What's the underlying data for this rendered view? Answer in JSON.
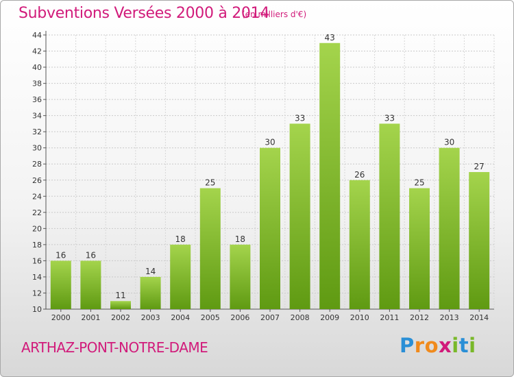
{
  "header": {
    "title": "Subventions Versées 2000 à 2014",
    "unit": "(en milliers d'€)"
  },
  "footer": {
    "town": "ARTHAZ-PONT-NOTRE-DAME",
    "logo_letters": [
      "P",
      "r",
      "o",
      "x",
      "i",
      "t",
      "i"
    ],
    "logo_colors": [
      "#2a8fd6",
      "#f08a1c",
      "#f08a1c",
      "#d11a7a",
      "#79b829",
      "#2a8fd6",
      "#79b829"
    ]
  },
  "chart_data": {
    "type": "bar",
    "categories": [
      "2000",
      "2001",
      "2002",
      "2003",
      "2004",
      "2005",
      "2006",
      "2007",
      "2008",
      "2009",
      "2010",
      "2011",
      "2012",
      "2013",
      "2014"
    ],
    "values": [
      16,
      16,
      11,
      14,
      18,
      25,
      18,
      30,
      33,
      43,
      26,
      33,
      25,
      30,
      27
    ],
    "title": "Subventions Versées 2000 à 2014",
    "xlabel": "",
    "ylabel": "",
    "ylim": [
      10,
      44
    ],
    "yticks": [
      10,
      12,
      14,
      16,
      18,
      20,
      22,
      24,
      26,
      28,
      30,
      32,
      34,
      36,
      38,
      40,
      42,
      44
    ],
    "grid": true,
    "bar_color_top": "#a4d44c",
    "bar_color_bottom": "#5f9a12"
  }
}
